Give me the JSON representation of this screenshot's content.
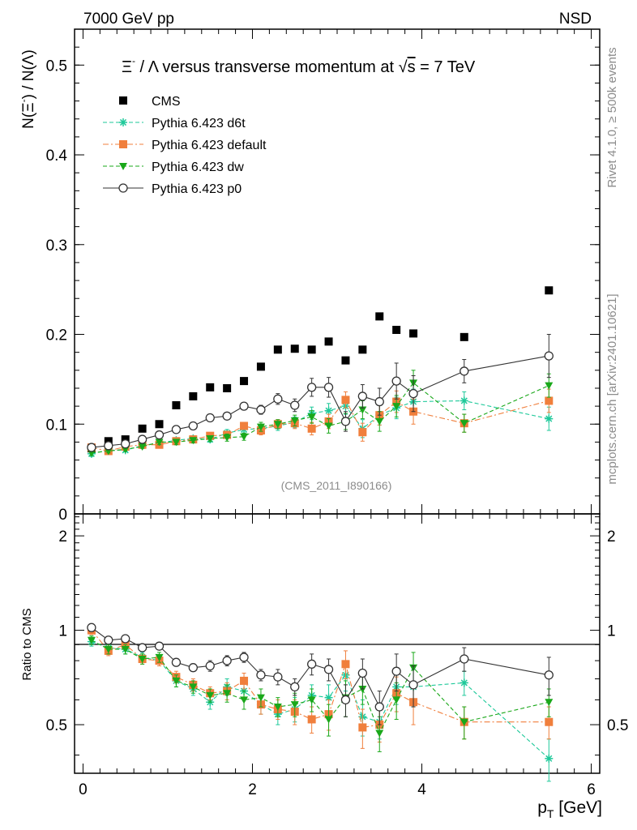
{
  "header": {
    "energy_label": "7000 GeV pp",
    "process_label": "NSD"
  },
  "side": {
    "rivet_label": "Rivet 4.1.0, ≥ 500k events",
    "source_label": "mcplots.cern.ch [arXiv:2401.10621]"
  },
  "chart_data": {
    "type": "line",
    "title": "Ξ⁻ / Λ versus transverse momentum at √s = 7 TeV",
    "title_parts": {
      "prefix": "Ξ",
      "sup": "-",
      "middle": " / Λ versus transverse momentum at ",
      "root": "s",
      "suffix": " = 7 TeV"
    },
    "analysis_label": "(CMS_2011_I890166)",
    "xlabel": "p_T [GeV]",
    "xlabel_parts": {
      "main": "p",
      "sub": "T",
      "unit": " [GeV]"
    },
    "ylabel": "N(Ξ⁻) / N(Λ)",
    "ylabel_parts": {
      "a": "N(Ξ",
      "sup": "-",
      "b": ")  /  N(Λ)"
    },
    "ratio_ylabel": "Ratio to CMS",
    "xlim": [
      -0.1,
      6.1
    ],
    "ylim": [
      0,
      0.54
    ],
    "ratio_ylim": [
      0.35,
      2.35
    ],
    "x_ticks": [
      "0",
      "2",
      "4",
      "6"
    ],
    "x_tick_values": [
      0,
      2,
      4,
      6
    ],
    "y_ticks": [
      "0",
      "0.1",
      "0.2",
      "0.3",
      "0.4",
      "0.5"
    ],
    "y_tick_values": [
      0,
      0.1,
      0.2,
      0.3,
      0.4,
      0.5
    ],
    "ratio_ticks": [
      "0.5",
      "1",
      "2"
    ],
    "ratio_tick_values": [
      0.5,
      1,
      2
    ],
    "legend_position": "top-left",
    "series": [
      {
        "name": "CMS",
        "color": "#000000",
        "marker": "square",
        "line": "none",
        "x": [
          0.1,
          0.3,
          0.5,
          0.7,
          0.9,
          1.1,
          1.3,
          1.5,
          1.7,
          1.9,
          2.1,
          2.3,
          2.5,
          2.7,
          2.9,
          3.1,
          3.3,
          3.5,
          3.7,
          3.9,
          4.5,
          5.5
        ],
        "y": [
          0.073,
          0.081,
          0.083,
          0.095,
          0.1,
          0.121,
          0.131,
          0.141,
          0.14,
          0.148,
          0.164,
          0.183,
          0.184,
          0.183,
          0.192,
          0.171,
          0.183,
          0.22,
          0.205,
          0.201,
          0.197,
          0.249
        ],
        "err": [
          0,
          0,
          0,
          0,
          0,
          0,
          0,
          0,
          0,
          0,
          0,
          0,
          0,
          0,
          0,
          0,
          0,
          0,
          0,
          0,
          0,
          0
        ]
      },
      {
        "name": "Pythia 6.423 d6t",
        "color": "#1ec99a",
        "marker": "star",
        "line": "dashed",
        "x": [
          0.1,
          0.3,
          0.5,
          0.7,
          0.9,
          1.1,
          1.3,
          1.5,
          1.7,
          1.9,
          2.1,
          2.3,
          2.5,
          2.7,
          2.9,
          3.1,
          3.3,
          3.5,
          3.7,
          3.9,
          4.5,
          5.5
        ],
        "y": [
          0.067,
          0.071,
          0.071,
          0.076,
          0.079,
          0.082,
          0.084,
          0.083,
          0.09,
          0.094,
          0.095,
          0.098,
          0.102,
          0.112,
          0.115,
          0.12,
          0.095,
          0.11,
          0.118,
          0.125,
          0.126,
          0.106
        ],
        "err": [
          0.003,
          0.002,
          0.002,
          0.002,
          0.003,
          0.003,
          0.003,
          0.003,
          0.004,
          0.004,
          0.005,
          0.005,
          0.006,
          0.007,
          0.008,
          0.009,
          0.01,
          0.011,
          0.012,
          0.014,
          0.01,
          0.013
        ]
      },
      {
        "name": "Pythia 6.423 default",
        "color": "#f07f3c",
        "marker": "square",
        "line": "dashdot",
        "x": [
          0.1,
          0.3,
          0.5,
          0.7,
          0.9,
          1.1,
          1.3,
          1.5,
          1.7,
          1.9,
          2.1,
          2.3,
          2.5,
          2.7,
          2.9,
          3.1,
          3.3,
          3.5,
          3.7,
          3.9,
          4.5,
          5.5
        ],
        "y": [
          0.074,
          0.07,
          0.075,
          0.077,
          0.077,
          0.081,
          0.083,
          0.087,
          0.088,
          0.098,
          0.093,
          0.1,
          0.101,
          0.095,
          0.103,
          0.127,
          0.091,
          0.11,
          0.125,
          0.114,
          0.101,
          0.126
        ],
        "err": [
          0.003,
          0.002,
          0.002,
          0.002,
          0.003,
          0.003,
          0.003,
          0.003,
          0.004,
          0.004,
          0.005,
          0.005,
          0.006,
          0.007,
          0.008,
          0.009,
          0.01,
          0.011,
          0.012,
          0.014,
          0.01,
          0.013
        ]
      },
      {
        "name": "Pythia 6.423 dw",
        "color": "#1aa81a",
        "marker": "triangle-down",
        "line": "dashed",
        "x": [
          0.1,
          0.3,
          0.5,
          0.7,
          0.9,
          1.1,
          1.3,
          1.5,
          1.7,
          1.9,
          2.1,
          2.3,
          2.5,
          2.7,
          2.9,
          3.1,
          3.3,
          3.5,
          3.7,
          3.9,
          4.5,
          5.5
        ],
        "y": [
          0.068,
          0.07,
          0.072,
          0.075,
          0.08,
          0.08,
          0.082,
          0.084,
          0.085,
          0.086,
          0.097,
          0.1,
          0.104,
          0.108,
          0.098,
          0.103,
          0.116,
          0.103,
          0.12,
          0.146,
          0.101,
          0.143
        ],
        "err": [
          0.003,
          0.002,
          0.002,
          0.002,
          0.003,
          0.003,
          0.003,
          0.003,
          0.004,
          0.004,
          0.005,
          0.005,
          0.006,
          0.007,
          0.008,
          0.009,
          0.01,
          0.011,
          0.012,
          0.014,
          0.01,
          0.013
        ]
      },
      {
        "name": "Pythia 6.423 p0",
        "color": "#333333",
        "marker": "open-circle",
        "line": "solid",
        "x": [
          0.1,
          0.3,
          0.5,
          0.7,
          0.9,
          1.1,
          1.3,
          1.5,
          1.7,
          1.9,
          2.1,
          2.3,
          2.5,
          2.7,
          2.9,
          3.1,
          3.3,
          3.5,
          3.7,
          3.9,
          4.5,
          5.5
        ],
        "y": [
          0.074,
          0.076,
          0.078,
          0.083,
          0.088,
          0.094,
          0.098,
          0.107,
          0.109,
          0.12,
          0.116,
          0.128,
          0.121,
          0.141,
          0.141,
          0.103,
          0.131,
          0.125,
          0.148,
          0.134,
          0.159,
          0.176
        ],
        "err": [
          0.002,
          0.002,
          0.002,
          0.002,
          0.002,
          0.002,
          0.002,
          0.003,
          0.004,
          0.004,
          0.005,
          0.006,
          0.007,
          0.01,
          0.011,
          0.011,
          0.013,
          0.015,
          0.02,
          0.02,
          0.013,
          0.024
        ]
      }
    ],
    "ratio_series": [
      {
        "name": "Pythia 6.423 d6t",
        "y": [
          0.92,
          0.88,
          0.87,
          0.82,
          0.8,
          0.69,
          0.65,
          0.59,
          0.66,
          0.64,
          0.58,
          0.54,
          0.56,
          0.62,
          0.61,
          0.72,
          0.53,
          0.51,
          0.66,
          0.66,
          0.68,
          0.39
        ],
        "err": [
          0.03,
          0.03,
          0.03,
          0.03,
          0.03,
          0.03,
          0.03,
          0.03,
          0.04,
          0.04,
          0.04,
          0.04,
          0.05,
          0.05,
          0.06,
          0.08,
          0.07,
          0.06,
          0.08,
          0.09,
          0.06,
          0.06
        ]
      },
      {
        "name": "Pythia 6.423 default",
        "y": [
          1.0,
          0.86,
          0.9,
          0.81,
          0.8,
          0.71,
          0.67,
          0.63,
          0.64,
          0.69,
          0.58,
          0.56,
          0.55,
          0.52,
          0.54,
          0.78,
          0.49,
          0.5,
          0.63,
          0.59,
          0.51,
          0.51
        ],
        "err": [
          0.03,
          0.03,
          0.03,
          0.03,
          0.03,
          0.03,
          0.03,
          0.03,
          0.04,
          0.04,
          0.04,
          0.04,
          0.05,
          0.05,
          0.06,
          0.08,
          0.07,
          0.06,
          0.08,
          0.09,
          0.06,
          0.06
        ]
      },
      {
        "name": "Pythia 6.423 dw",
        "y": [
          0.93,
          0.87,
          0.87,
          0.81,
          0.82,
          0.69,
          0.66,
          0.62,
          0.63,
          0.6,
          0.61,
          0.57,
          0.58,
          0.6,
          0.52,
          0.61,
          0.65,
          0.47,
          0.6,
          0.76,
          0.51,
          0.59
        ],
        "err": [
          0.03,
          0.03,
          0.03,
          0.03,
          0.03,
          0.03,
          0.03,
          0.03,
          0.04,
          0.04,
          0.04,
          0.04,
          0.05,
          0.05,
          0.06,
          0.08,
          0.07,
          0.06,
          0.08,
          0.09,
          0.06,
          0.06
        ]
      },
      {
        "name": "Pythia 6.423 p0",
        "y": [
          1.02,
          0.93,
          0.94,
          0.88,
          0.89,
          0.79,
          0.76,
          0.77,
          0.8,
          0.82,
          0.72,
          0.71,
          0.66,
          0.78,
          0.75,
          0.6,
          0.73,
          0.57,
          0.74,
          0.67,
          0.81,
          0.72
        ],
        "err": [
          0.03,
          0.02,
          0.02,
          0.02,
          0.02,
          0.02,
          0.02,
          0.03,
          0.03,
          0.03,
          0.03,
          0.04,
          0.04,
          0.06,
          0.06,
          0.07,
          0.08,
          0.07,
          0.1,
          0.1,
          0.07,
          0.1
        ]
      }
    ]
  }
}
